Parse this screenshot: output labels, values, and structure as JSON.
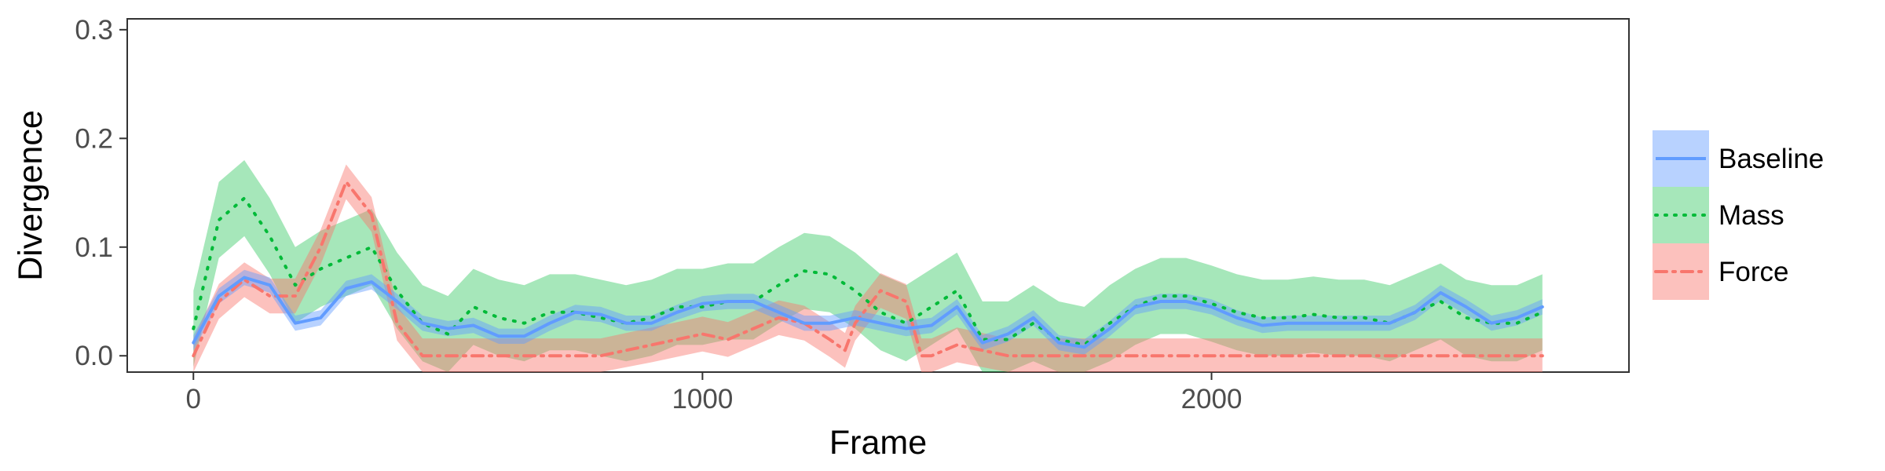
{
  "chart_data": {
    "type": "line",
    "title": "",
    "xlabel": "Frame",
    "ylabel": "Divergence",
    "xlim": [
      -130,
      2820
    ],
    "ylim": [
      -0.015,
      0.31
    ],
    "x_ticks": [
      0,
      1000,
      2000
    ],
    "x_tick_labels": [
      "0",
      "1000",
      "2000"
    ],
    "y_ticks": [
      0.0,
      0.1,
      0.2,
      0.3
    ],
    "y_tick_labels": [
      "0.0",
      "0.1",
      "0.2",
      "0.3"
    ],
    "grid": false,
    "legend_position": "right",
    "series": [
      {
        "name": "Baseline",
        "color": "#619CFF",
        "line_style": "solid",
        "band_half_width": 0.007,
        "x": [
          0,
          50,
          100,
          150,
          200,
          250,
          300,
          350,
          400,
          450,
          500,
          550,
          600,
          650,
          700,
          750,
          800,
          850,
          900,
          950,
          1000,
          1050,
          1100,
          1150,
          1200,
          1250,
          1300,
          1350,
          1400,
          1450,
          1500,
          1550,
          1600,
          1650,
          1700,
          1750,
          1800,
          1850,
          1900,
          1950,
          2000,
          2050,
          2100,
          2150,
          2200,
          2250,
          2300,
          2350,
          2400,
          2450,
          2500,
          2550,
          2600,
          2650
        ],
        "y": [
          0.012,
          0.055,
          0.072,
          0.065,
          0.03,
          0.035,
          0.062,
          0.068,
          0.05,
          0.03,
          0.025,
          0.028,
          0.018,
          0.018,
          0.03,
          0.04,
          0.038,
          0.03,
          0.03,
          0.04,
          0.048,
          0.05,
          0.05,
          0.04,
          0.03,
          0.03,
          0.035,
          0.03,
          0.025,
          0.028,
          0.045,
          0.012,
          0.02,
          0.035,
          0.012,
          0.008,
          0.025,
          0.045,
          0.05,
          0.05,
          0.045,
          0.035,
          0.028,
          0.03,
          0.03,
          0.03,
          0.03,
          0.03,
          0.04,
          0.058,
          0.045,
          0.03,
          0.035,
          0.045
        ]
      },
      {
        "name": "Mass",
        "color": "#00BA38",
        "line_style": "dotted",
        "band_half_width": 0.035,
        "x": [
          0,
          50,
          100,
          150,
          200,
          250,
          300,
          350,
          400,
          450,
          500,
          550,
          600,
          650,
          700,
          750,
          800,
          850,
          900,
          950,
          1000,
          1050,
          1100,
          1150,
          1200,
          1250,
          1300,
          1350,
          1400,
          1450,
          1500,
          1550,
          1600,
          1650,
          1700,
          1750,
          1800,
          1850,
          1900,
          1950,
          2000,
          2050,
          2100,
          2150,
          2200,
          2250,
          2300,
          2350,
          2400,
          2450,
          2500,
          2550,
          2600,
          2650
        ],
        "y": [
          0.025,
          0.125,
          0.145,
          0.11,
          0.065,
          0.08,
          0.09,
          0.1,
          0.06,
          0.03,
          0.02,
          0.045,
          0.035,
          0.03,
          0.04,
          0.04,
          0.035,
          0.03,
          0.035,
          0.045,
          0.045,
          0.05,
          0.05,
          0.065,
          0.078,
          0.075,
          0.06,
          0.04,
          0.03,
          0.045,
          0.06,
          0.015,
          0.015,
          0.03,
          0.015,
          0.01,
          0.03,
          0.045,
          0.055,
          0.055,
          0.048,
          0.04,
          0.035,
          0.035,
          0.038,
          0.035,
          0.035,
          0.03,
          0.04,
          0.05,
          0.035,
          0.03,
          0.03,
          0.04
        ]
      },
      {
        "name": "Force",
        "color": "#F8766D",
        "line_style": "dashdot",
        "band_half_width": 0.016,
        "x": [
          0,
          50,
          100,
          150,
          200,
          250,
          300,
          350,
          400,
          450,
          500,
          600,
          700,
          800,
          900,
          1000,
          1050,
          1100,
          1150,
          1200,
          1250,
          1280,
          1300,
          1350,
          1400,
          1430,
          1450,
          1500,
          1600,
          1700,
          1800,
          1900,
          2000,
          2100,
          2200,
          2300,
          2400,
          2500,
          2600,
          2650
        ],
        "y": [
          0.0,
          0.05,
          0.07,
          0.055,
          0.055,
          0.1,
          0.16,
          0.13,
          0.03,
          0.0,
          0.0,
          0.0,
          0.0,
          0.0,
          0.01,
          0.02,
          0.015,
          0.025,
          0.035,
          0.03,
          0.015,
          0.005,
          0.03,
          0.06,
          0.05,
          0.0,
          0.0,
          0.01,
          0.0,
          0.0,
          0.0,
          0.0,
          0.0,
          0.0,
          0.0,
          0.0,
          0.0,
          0.0,
          0.0,
          0.0
        ]
      }
    ]
  }
}
